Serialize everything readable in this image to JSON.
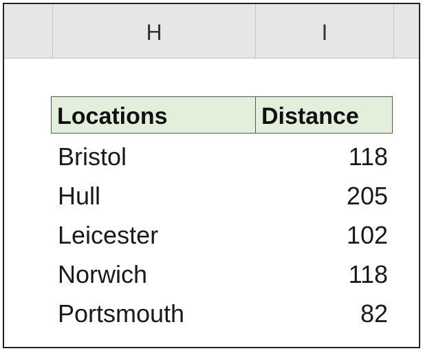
{
  "columns": [
    {
      "letter": "H"
    },
    {
      "letter": "I"
    }
  ],
  "table": {
    "headers": [
      "Locations",
      "Distance"
    ],
    "rows": [
      {
        "location": "Bristol",
        "distance": "118"
      },
      {
        "location": "Hull",
        "distance": "205"
      },
      {
        "location": "Leicester",
        "distance": "102"
      },
      {
        "location": "Norwich",
        "distance": "118"
      },
      {
        "location": "Portsmouth",
        "distance": "82"
      }
    ],
    "header_fill": "#e2efda"
  }
}
